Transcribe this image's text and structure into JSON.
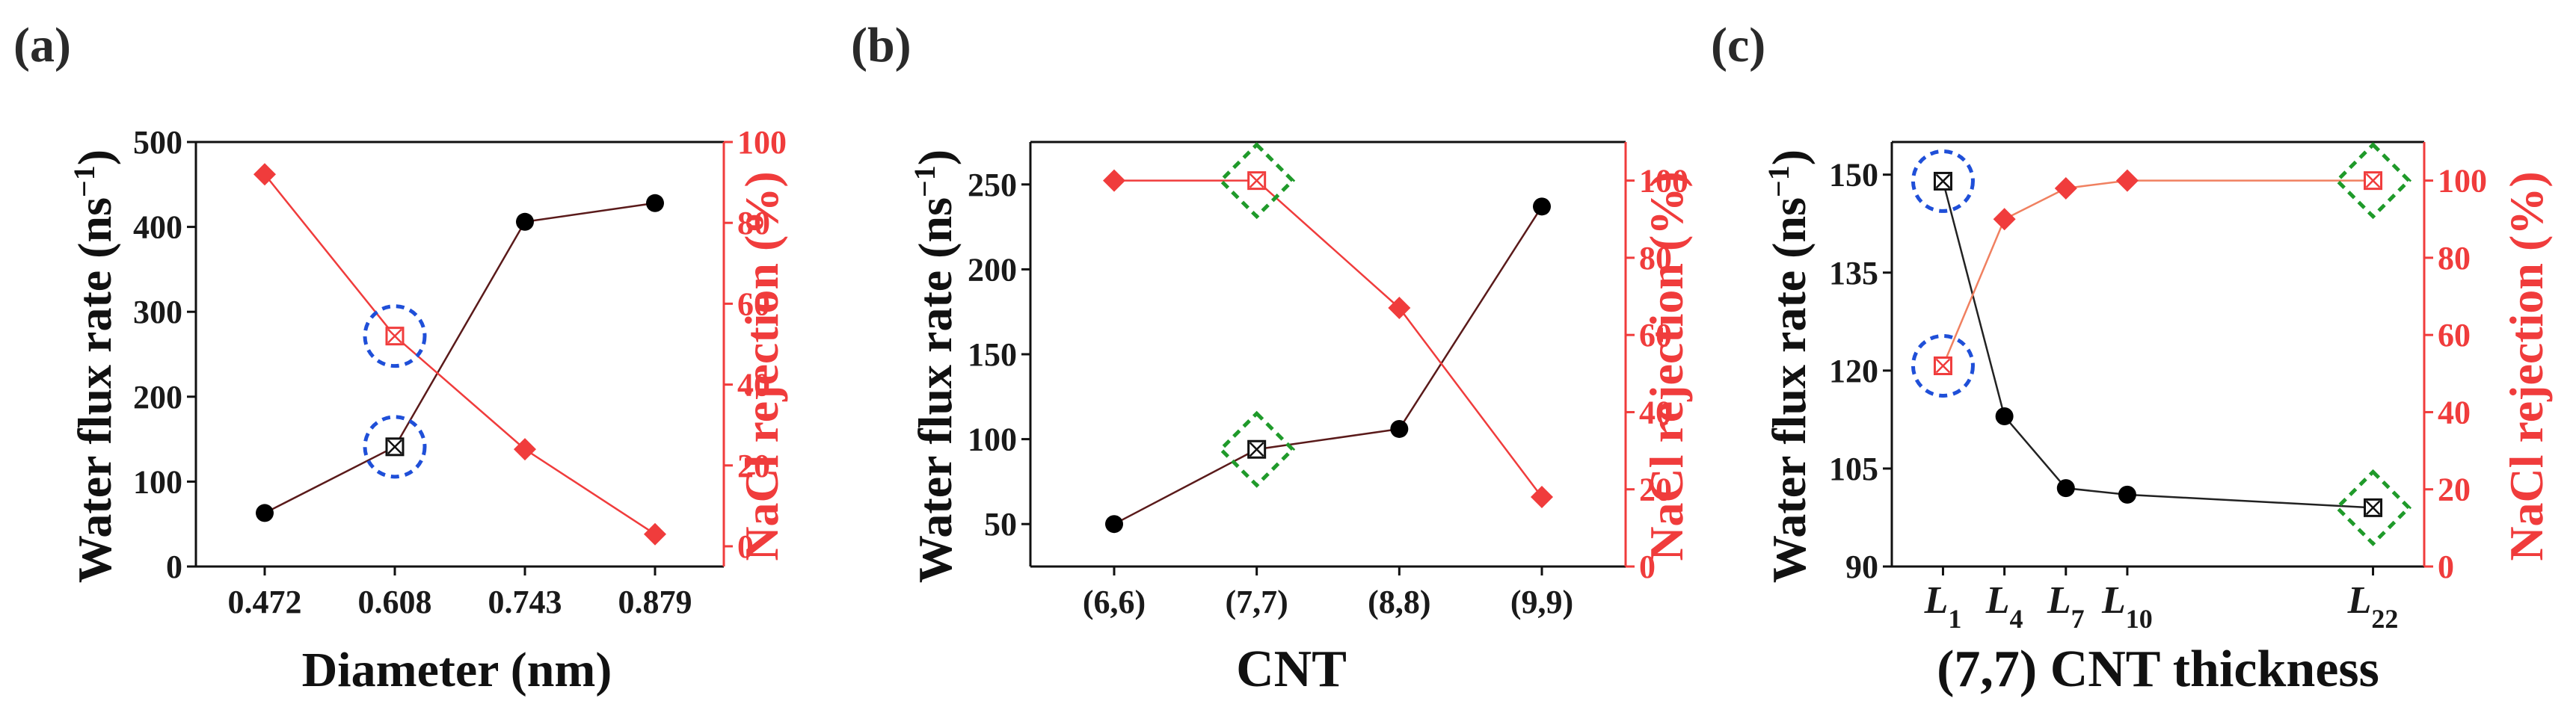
{
  "chart_data": [
    {
      "panel": "(a)",
      "type": "line",
      "categories": [
        "0.472",
        "0.608",
        "0.743",
        "0.879"
      ],
      "xlabel": "Diameter (nm)",
      "ylabel_left": "Water flux rate (ns",
      "ylabel_left_sup": "−1",
      "ylabel_left_tail": ")",
      "ylabel_right": "NaCl rejection (%)",
      "ylim_left": [
        0,
        500
      ],
      "yticks_left": [
        0,
        100,
        200,
        300,
        400,
        500
      ],
      "ylim_right": [
        -5,
        100
      ],
      "yticks_right": [
        0,
        20,
        40,
        60,
        80,
        100
      ],
      "series": [
        {
          "name": "Water flux rate",
          "axis": "left",
          "color": "#000000",
          "line_color": "#5a1a1a",
          "marker": "circle",
          "values": [
            63,
            141,
            406,
            428
          ],
          "highlight_index": 1
        },
        {
          "name": "NaCl rejection",
          "axis": "right",
          "color": "#f03c3c",
          "line_color": "#f03c3c",
          "marker": "diamond",
          "values": [
            92,
            52,
            24,
            3
          ],
          "highlight_index": 1
        }
      ],
      "annotations": [
        {
          "series": 0,
          "index": 1,
          "shape": "circle",
          "color": "#1f4fd8"
        },
        {
          "series": 1,
          "index": 1,
          "shape": "circle",
          "color": "#1f4fd8"
        }
      ]
    },
    {
      "panel": "(b)",
      "type": "line",
      "categories": [
        "(6,6)",
        "(7,7)",
        "(8,8)",
        "(9,9)"
      ],
      "xlabel": "CNT",
      "ylabel_left": "Water flux rate (ns",
      "ylabel_left_sup": "−1",
      "ylabel_left_tail": ")",
      "ylabel_right": "NaCl rejection (%)",
      "ylim_left": [
        25,
        275
      ],
      "yticks_left": [
        50,
        100,
        150,
        200,
        250
      ],
      "ylim_right": [
        0,
        110
      ],
      "yticks_right": [
        0,
        20,
        40,
        60,
        80,
        100
      ],
      "series": [
        {
          "name": "Water flux rate",
          "axis": "left",
          "color": "#000000",
          "line_color": "#5a1a1a",
          "marker": "circle",
          "values": [
            50,
            94,
            106,
            237
          ],
          "highlight_index": 1
        },
        {
          "name": "NaCl rejection",
          "axis": "right",
          "color": "#f03c3c",
          "line_color": "#f03c3c",
          "marker": "diamond",
          "values": [
            100,
            100,
            67,
            18
          ],
          "highlight_index": 1
        }
      ],
      "annotations": [
        {
          "series": 0,
          "index": 1,
          "shape": "diamond",
          "color": "#1f9a2a"
        },
        {
          "series": 1,
          "index": 1,
          "shape": "diamond",
          "color": "#1f9a2a"
        }
      ]
    },
    {
      "panel": "(c)",
      "type": "line",
      "categories": [
        "L",
        "L",
        "L",
        "L",
        "L"
      ],
      "category_subscripts": [
        "1",
        "4",
        "7",
        "10",
        "22"
      ],
      "x": [
        1,
        4,
        7,
        10,
        22
      ],
      "xlabel": "(7,7) CNT thickness",
      "ylabel_left": "Water flux rate (ns",
      "ylabel_left_sup": "−1",
      "ylabel_left_tail": ")",
      "ylabel_right": "NaCl rejection (%)",
      "ylim_left": [
        90,
        155
      ],
      "yticks_left": [
        90,
        105,
        120,
        135,
        150
      ],
      "ylim_right": [
        0,
        110
      ],
      "yticks_right": [
        0,
        20,
        40,
        60,
        80,
        100
      ],
      "series": [
        {
          "name": "Water flux rate",
          "axis": "left",
          "color": "#000000",
          "line_color": "#222222",
          "marker": "circle",
          "values": [
            149,
            113,
            102,
            101,
            99
          ],
          "highlight_index": [
            0,
            4
          ]
        },
        {
          "name": "NaCl rejection",
          "axis": "right",
          "color": "#f03c3c",
          "line_color": "#f08060",
          "marker": "diamond",
          "values": [
            52,
            90,
            98,
            100,
            100
          ],
          "highlight_index": [
            0,
            4
          ]
        }
      ],
      "annotations": [
        {
          "series": 0,
          "index": 0,
          "shape": "circle",
          "color": "#1f4fd8"
        },
        {
          "series": 1,
          "index": 0,
          "shape": "circle",
          "color": "#1f4fd8"
        },
        {
          "series": 0,
          "index": 4,
          "shape": "diamond",
          "color": "#1f9a2a"
        },
        {
          "series": 1,
          "index": 4,
          "shape": "diamond",
          "color": "#1f9a2a"
        }
      ]
    }
  ]
}
